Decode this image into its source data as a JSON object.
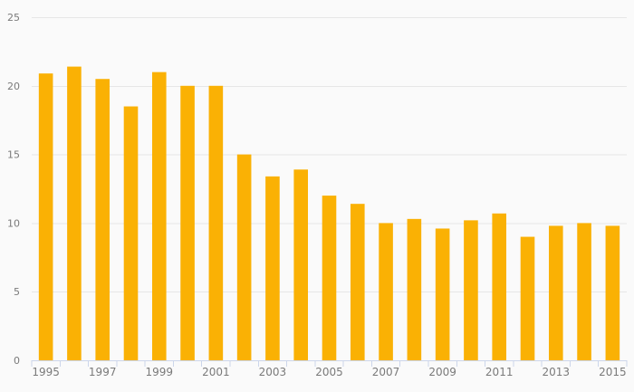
{
  "chart_data": {
    "type": "bar",
    "title": "",
    "xlabel": "",
    "ylabel": "",
    "categories": [
      "1995",
      "1996",
      "1997",
      "1998",
      "1999",
      "2000",
      "2001",
      "2002",
      "2003",
      "2004",
      "2005",
      "2006",
      "2007",
      "2008",
      "2009",
      "2010",
      "2011",
      "2012",
      "2013",
      "2014",
      "2015"
    ],
    "values": [
      20.9,
      21.4,
      20.5,
      18.5,
      21.0,
      20.0,
      20.0,
      15.0,
      13.4,
      13.9,
      12.0,
      11.4,
      10.0,
      10.3,
      9.6,
      10.2,
      10.7,
      9.0,
      9.8,
      10.0,
      9.8
    ],
    "ylim": [
      0,
      25
    ],
    "y_ticks": [
      0,
      5,
      10,
      15,
      20,
      25
    ],
    "x_tick_labels_shown": [
      "1995",
      "1997",
      "1999",
      "2001",
      "2003",
      "2005",
      "2007",
      "2009",
      "2011",
      "2013",
      "2015"
    ],
    "x_label_every": 2,
    "grid": true,
    "legend": null,
    "colors": {
      "bar": "#fab104",
      "background": "#fafafa",
      "gridline": "#e6e6e6",
      "axis_line": "#ccd6eb",
      "tick_mark": "#ccd6eb",
      "label_text": "#7a7a7a"
    }
  }
}
